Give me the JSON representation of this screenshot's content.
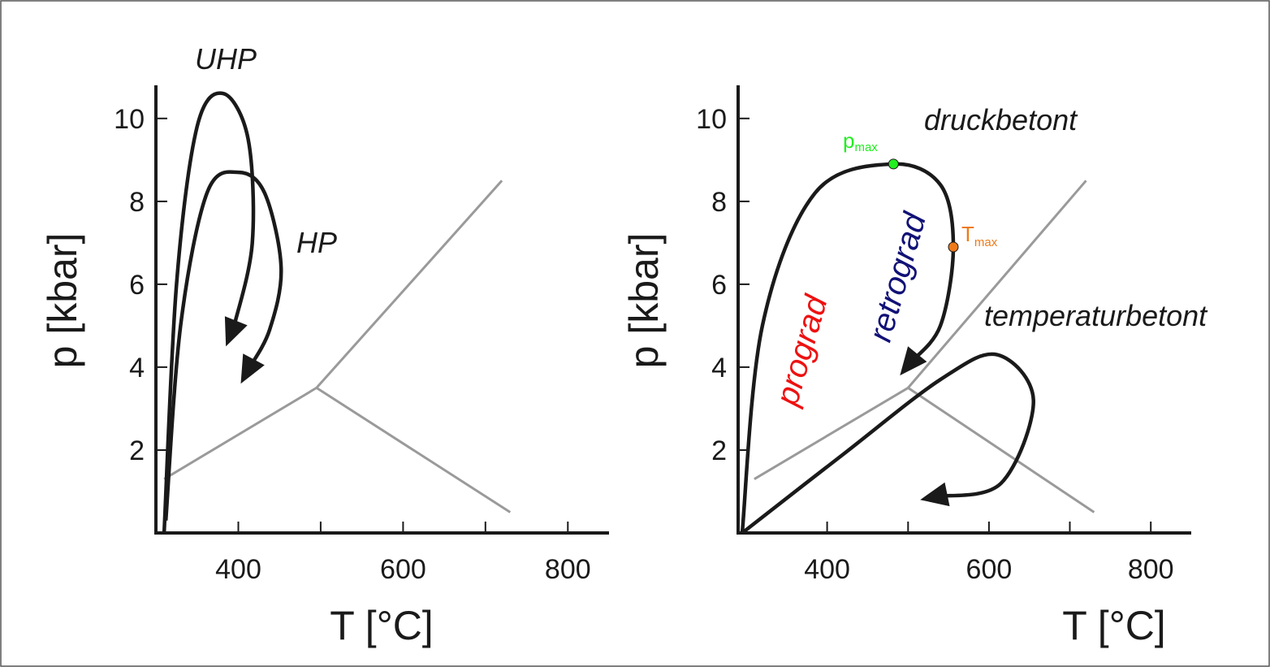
{
  "chart_data": [
    {
      "type": "line",
      "panel": "left",
      "title": "",
      "xlabel": "T [°C]",
      "ylabel": "p [kbar]",
      "xlim": [
        300,
        850
      ],
      "ylim": [
        0,
        10.8
      ],
      "xticks": [
        400,
        600,
        800
      ],
      "xtick_minor": [
        500,
        700
      ],
      "yticks": [
        2,
        4,
        6,
        8,
        10
      ],
      "phase_boundaries": {
        "color": "#9a9a9a",
        "triple_point": [
          495,
          3.5
        ],
        "lines": [
          {
            "name": "boundary-low",
            "points": [
              [
                310,
                1.3
              ],
              [
                495,
                3.5
              ]
            ]
          },
          {
            "name": "boundary-high",
            "points": [
              [
                495,
                3.5
              ],
              [
                720,
                8.5
              ]
            ]
          },
          {
            "name": "boundary-right",
            "points": [
              [
                495,
                3.5
              ],
              [
                730,
                0.5
              ]
            ]
          }
        ]
      },
      "series": [
        {
          "name": "UHP",
          "label": "UHP",
          "color": "#1a1a1a",
          "points": [
            [
              310,
              0.0
            ],
            [
              325,
              6.0
            ],
            [
              350,
              9.8
            ],
            [
              382,
              10.6
            ],
            [
              412,
              9.5
            ],
            [
              417,
              7.0
            ],
            [
              395,
              5.0
            ],
            [
              385,
              4.5
            ]
          ]
        },
        {
          "name": "HP",
          "label": "HP",
          "color": "#1a1a1a",
          "points": [
            [
              312,
              0.3
            ],
            [
              330,
              5.0
            ],
            [
              362,
              8.2
            ],
            [
              400,
              8.7
            ],
            [
              432,
              8.2
            ],
            [
              452,
              6.4
            ],
            [
              438,
              4.9
            ],
            [
              403,
              3.6
            ]
          ]
        }
      ]
    },
    {
      "type": "line",
      "panel": "right",
      "title": "",
      "xlabel": "T [°C]",
      "ylabel": "p [kbar]",
      "xlim": [
        290,
        850
      ],
      "ylim": [
        0,
        10.8
      ],
      "xticks": [
        400,
        600,
        800
      ],
      "xtick_minor": [
        500,
        700
      ],
      "yticks": [
        2,
        4,
        6,
        8,
        10
      ],
      "phase_boundaries": {
        "color": "#9a9a9a",
        "triple_point": [
          500,
          3.5
        ],
        "lines": [
          {
            "name": "boundary-low",
            "points": [
              [
                310,
                1.3
              ],
              [
                500,
                3.5
              ]
            ]
          },
          {
            "name": "boundary-high",
            "points": [
              [
                500,
                3.5
              ],
              [
                720,
                8.5
              ]
            ]
          },
          {
            "name": "boundary-right",
            "points": [
              [
                500,
                3.5
              ],
              [
                730,
                0.5
              ]
            ]
          }
        ]
      },
      "series": [
        {
          "name": "druckbetont",
          "label": "druckbetont",
          "color": "#1a1a1a",
          "points": [
            [
              295,
              0.0
            ],
            [
              320,
              5.0
            ],
            [
              385,
              8.2
            ],
            [
              480,
              8.9
            ],
            [
              540,
              8.4
            ],
            [
              556,
              6.9
            ],
            [
              540,
              5.0
            ],
            [
              490,
              3.8
            ]
          ]
        },
        {
          "name": "temperaturbetont",
          "label": "temperaturbetont",
          "color": "#1a1a1a",
          "points": [
            [
              295,
              0.0
            ],
            [
              420,
              1.9
            ],
            [
              540,
              3.7
            ],
            [
              610,
              4.3
            ],
            [
              655,
              3.2
            ],
            [
              615,
              1.2
            ],
            [
              515,
              0.8
            ]
          ]
        }
      ],
      "points_of_interest": [
        {
          "name": "p-max",
          "label": "p",
          "subscript": "max",
          "x": 482,
          "y": 8.9,
          "color": "#22ee22"
        },
        {
          "name": "t-max",
          "label": "T",
          "subscript": "max",
          "x": 556,
          "y": 6.9,
          "color": "#ee7a1a"
        }
      ],
      "annotations": [
        {
          "name": "prograd-label",
          "text": "prograd",
          "color": "#ee1111"
        },
        {
          "name": "retrograd-label",
          "text": "retrograd",
          "color": "#111177"
        }
      ]
    }
  ]
}
